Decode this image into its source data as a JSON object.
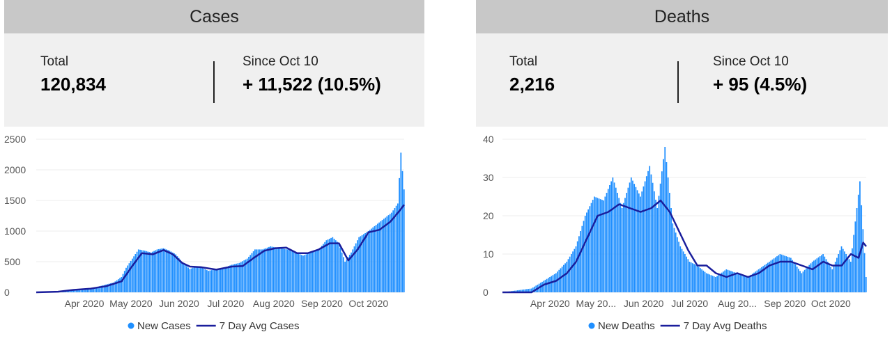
{
  "cases": {
    "title": "Cases",
    "total_label": "Total",
    "total_value": "120,834",
    "since_label": "Since Oct 10",
    "since_value": "+ 11,522 (10.5%)"
  },
  "deaths": {
    "title": "Deaths",
    "total_label": "Total",
    "total_value": "2,216",
    "since_label": "Since Oct 10",
    "since_value": "+ 95 (4.5%)"
  },
  "colors": {
    "bar": "#1f8fff",
    "line": "#1a1e9c",
    "header_bg": "#c8c8c8",
    "stats_bg": "#f0f0f0",
    "grid": "#ececec"
  },
  "chart_data": [
    {
      "type": "bar",
      "title": "",
      "ylim": [
        0,
        2500
      ],
      "yticks": [
        0,
        500,
        1000,
        1500,
        2000,
        2500
      ],
      "x_range": [
        "2020-03-01",
        "2020-10-24"
      ],
      "xticks": [
        "Apr 2020",
        "May 2020",
        "Jun 2020",
        "Jul 2020",
        "Aug 2020",
        "Sep 2020",
        "Oct 2020"
      ],
      "legend": [
        "New Cases",
        "7 Day Avg Cases"
      ],
      "legend_position": "bottom",
      "series": [
        {
          "name": "New Cases",
          "kind": "bar",
          "points": [
            [
              "2020-03-01",
              0
            ],
            [
              "2020-03-15",
              10
            ],
            [
              "2020-03-20",
              30
            ],
            [
              "2020-03-25",
              50
            ],
            [
              "2020-04-01",
              60
            ],
            [
              "2020-04-08",
              80
            ],
            [
              "2020-04-14",
              120
            ],
            [
              "2020-04-20",
              160
            ],
            [
              "2020-04-25",
              250
            ],
            [
              "2020-04-28",
              400
            ],
            [
              "2020-05-02",
              550
            ],
            [
              "2020-05-06",
              700
            ],
            [
              "2020-05-10",
              680
            ],
            [
              "2020-05-14",
              650
            ],
            [
              "2020-05-18",
              700
            ],
            [
              "2020-05-22",
              720
            ],
            [
              "2020-05-26",
              680
            ],
            [
              "2020-05-30",
              620
            ],
            [
              "2020-06-03",
              500
            ],
            [
              "2020-06-08",
              380
            ],
            [
              "2020-06-12",
              420
            ],
            [
              "2020-06-16",
              400
            ],
            [
              "2020-06-20",
              350
            ],
            [
              "2020-06-25",
              380
            ],
            [
              "2020-06-30",
              400
            ],
            [
              "2020-07-05",
              450
            ],
            [
              "2020-07-10",
              480
            ],
            [
              "2020-07-15",
              550
            ],
            [
              "2020-07-20",
              700
            ],
            [
              "2020-07-25",
              700
            ],
            [
              "2020-07-30",
              750
            ],
            [
              "2020-08-05",
              720
            ],
            [
              "2020-08-10",
              700
            ],
            [
              "2020-08-15",
              650
            ],
            [
              "2020-08-20",
              600
            ],
            [
              "2020-08-25",
              650
            ],
            [
              "2020-08-30",
              700
            ],
            [
              "2020-09-04",
              850
            ],
            [
              "2020-09-08",
              900
            ],
            [
              "2020-09-12",
              800
            ],
            [
              "2020-09-16",
              500
            ],
            [
              "2020-09-20",
              650
            ],
            [
              "2020-09-25",
              900
            ],
            [
              "2020-10-01",
              1000
            ],
            [
              "2020-10-06",
              1100
            ],
            [
              "2020-10-11",
              1200
            ],
            [
              "2020-10-16",
              1300
            ],
            [
              "2020-10-20",
              1450
            ],
            [
              "2020-10-22",
              2280
            ],
            [
              "2020-10-24",
              1680
            ]
          ]
        },
        {
          "name": "7 Day Avg Cases",
          "kind": "line",
          "points": [
            [
              "2020-03-01",
              0
            ],
            [
              "2020-03-15",
              10
            ],
            [
              "2020-03-25",
              40
            ],
            [
              "2020-04-05",
              60
            ],
            [
              "2020-04-15",
              100
            ],
            [
              "2020-04-25",
              180
            ],
            [
              "2020-05-01",
              400
            ],
            [
              "2020-05-08",
              640
            ],
            [
              "2020-05-15",
              620
            ],
            [
              "2020-05-22",
              690
            ],
            [
              "2020-05-28",
              620
            ],
            [
              "2020-06-03",
              480
            ],
            [
              "2020-06-08",
              420
            ],
            [
              "2020-06-15",
              410
            ],
            [
              "2020-06-25",
              370
            ],
            [
              "2020-07-05",
              420
            ],
            [
              "2020-07-12",
              430
            ],
            [
              "2020-07-19",
              560
            ],
            [
              "2020-07-26",
              680
            ],
            [
              "2020-08-02",
              720
            ],
            [
              "2020-08-09",
              730
            ],
            [
              "2020-08-16",
              640
            ],
            [
              "2020-08-23",
              640
            ],
            [
              "2020-08-30",
              700
            ],
            [
              "2020-09-06",
              800
            ],
            [
              "2020-09-12",
              800
            ],
            [
              "2020-09-18",
              520
            ],
            [
              "2020-09-24",
              700
            ],
            [
              "2020-10-01",
              980
            ],
            [
              "2020-10-08",
              1020
            ],
            [
              "2020-10-15",
              1150
            ],
            [
              "2020-10-20",
              1300
            ],
            [
              "2020-10-24",
              1430
            ]
          ]
        }
      ]
    },
    {
      "type": "bar",
      "title": "",
      "ylim": [
        0,
        40
      ],
      "yticks": [
        0,
        10,
        20,
        30,
        40
      ],
      "x_range": [
        "2020-03-01",
        "2020-10-24"
      ],
      "xticks": [
        "Apr 2020",
        "May 20...",
        "Jun 2020",
        "Jul 2020",
        "Aug 20...",
        "Sep 2020",
        "Oct 2020"
      ],
      "legend": [
        "New Deaths",
        "7 Day Avg Deaths"
      ],
      "legend_position": "bottom",
      "series": [
        {
          "name": "New Deaths",
          "kind": "bar",
          "points": [
            [
              "2020-03-01",
              0
            ],
            [
              "2020-03-20",
              1
            ],
            [
              "2020-03-28",
              3
            ],
            [
              "2020-04-05",
              5
            ],
            [
              "2020-04-12",
              8
            ],
            [
              "2020-04-18",
              12
            ],
            [
              "2020-04-24",
              20
            ],
            [
              "2020-04-30",
              25
            ],
            [
              "2020-05-06",
              24
            ],
            [
              "2020-05-12",
              30
            ],
            [
              "2020-05-18",
              22
            ],
            [
              "2020-05-24",
              30
            ],
            [
              "2020-05-30",
              25
            ],
            [
              "2020-06-05",
              33
            ],
            [
              "2020-06-10",
              22
            ],
            [
              "2020-06-15",
              38
            ],
            [
              "2020-06-20",
              18
            ],
            [
              "2020-06-25",
              12
            ],
            [
              "2020-07-01",
              8
            ],
            [
              "2020-07-06",
              7
            ],
            [
              "2020-07-12",
              5
            ],
            [
              "2020-07-18",
              4
            ],
            [
              "2020-07-25",
              6
            ],
            [
              "2020-08-01",
              5
            ],
            [
              "2020-08-08",
              4
            ],
            [
              "2020-08-15",
              6
            ],
            [
              "2020-08-22",
              8
            ],
            [
              "2020-08-29",
              10
            ],
            [
              "2020-09-05",
              9
            ],
            [
              "2020-09-12",
              5
            ],
            [
              "2020-09-19",
              8
            ],
            [
              "2020-09-26",
              10
            ],
            [
              "2020-10-02",
              6
            ],
            [
              "2020-10-08",
              12
            ],
            [
              "2020-10-14",
              8
            ],
            [
              "2020-10-20",
              29
            ],
            [
              "2020-10-24",
              4
            ]
          ]
        },
        {
          "name": "7 Day Avg Deaths",
          "kind": "line",
          "points": [
            [
              "2020-03-01",
              0
            ],
            [
              "2020-03-20",
              0
            ],
            [
              "2020-03-28",
              2
            ],
            [
              "2020-04-05",
              3
            ],
            [
              "2020-04-12",
              5
            ],
            [
              "2020-04-18",
              8
            ],
            [
              "2020-04-25",
              14
            ],
            [
              "2020-05-02",
              20
            ],
            [
              "2020-05-09",
              21
            ],
            [
              "2020-05-16",
              23
            ],
            [
              "2020-05-23",
              22
            ],
            [
              "2020-05-30",
              21
            ],
            [
              "2020-06-06",
              22
            ],
            [
              "2020-06-12",
              24
            ],
            [
              "2020-06-18",
              21
            ],
            [
              "2020-06-24",
              16
            ],
            [
              "2020-06-30",
              11
            ],
            [
              "2020-07-06",
              7
            ],
            [
              "2020-07-12",
              7
            ],
            [
              "2020-07-18",
              5
            ],
            [
              "2020-07-25",
              4
            ],
            [
              "2020-08-01",
              5
            ],
            [
              "2020-08-08",
              4
            ],
            [
              "2020-08-15",
              5
            ],
            [
              "2020-08-22",
              7
            ],
            [
              "2020-08-29",
              8
            ],
            [
              "2020-09-05",
              8
            ],
            [
              "2020-09-12",
              7
            ],
            [
              "2020-09-19",
              6
            ],
            [
              "2020-09-26",
              8
            ],
            [
              "2020-10-02",
              7
            ],
            [
              "2020-10-08",
              7
            ],
            [
              "2020-10-14",
              10
            ],
            [
              "2020-10-19",
              9
            ],
            [
              "2020-10-22",
              13
            ],
            [
              "2020-10-24",
              12
            ]
          ]
        }
      ]
    }
  ]
}
